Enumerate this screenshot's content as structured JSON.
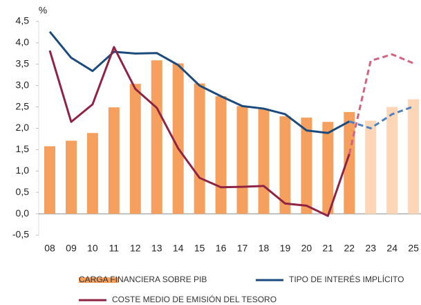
{
  "chart_data": {
    "type": "bar_line",
    "y_label": "%",
    "categories": [
      "08",
      "09",
      "10",
      "11",
      "12",
      "13",
      "14",
      "15",
      "16",
      "17",
      "18",
      "19",
      "20",
      "21",
      "22",
      "23",
      "24",
      "25"
    ],
    "ylim": [
      -0.5,
      4.5
    ],
    "yticks": [
      {
        "value": -0.5,
        "label": "-0,5"
      },
      {
        "value": 0,
        "label": "0,0"
      },
      {
        "value": 0.5,
        "label": "0,5"
      },
      {
        "value": 1,
        "label": "1,0"
      },
      {
        "value": 1.5,
        "label": "1,5"
      },
      {
        "value": 2,
        "label": "2,0"
      },
      {
        "value": 2.5,
        "label": "2,5"
      },
      {
        "value": 3,
        "label": "3,0"
      },
      {
        "value": 3.5,
        "label": "3,5"
      },
      {
        "value": 4,
        "label": "4,0"
      },
      {
        "value": 4.5,
        "label": "4,5"
      }
    ],
    "zero_line": true,
    "series": [
      {
        "name": "CARGA FINANCIERA SOBRE PIB",
        "kind": "bar",
        "color": "#f5a05f",
        "colors": [
          "#f5a05f",
          "#f5a05f",
          "#f5a05f",
          "#f5a05f",
          "#f5a05f",
          "#f5a05f",
          "#f5a05f",
          "#f5a05f",
          "#f5a05f",
          "#f5a05f",
          "#f5a05f",
          "#f5a05f",
          "#f5a05f",
          "#f5a05f",
          "#f5a05f",
          "#fcd6b7",
          "#fcd6b7",
          "#fcd6b7"
        ],
        "values": [
          1.58,
          1.71,
          1.89,
          2.49,
          3.04,
          3.59,
          3.52,
          3.05,
          2.75,
          2.52,
          2.45,
          2.28,
          2.25,
          2.15,
          2.38,
          2.18,
          2.5,
          2.68
        ]
      },
      {
        "name": "TIPO DE INTERÉS IMPLÍCITO",
        "kind": "line",
        "color": "#1b4a7c",
        "colors": [
          "#1b4a7c",
          "#1b4a7c",
          "#1b4a7c",
          "#1b4a7c",
          "#1b4a7c",
          "#1b4a7c",
          "#1b4a7c",
          "#1b4a7c",
          "#1b4a7c",
          "#1b4a7c",
          "#1b4a7c",
          "#1b4a7c",
          "#1b4a7c",
          "#1b4a7c",
          "#1b4a7c",
          "#4d80c0",
          "#4d80c0",
          "#4d80c0"
        ],
        "line_styles": [
          "solid",
          "solid",
          "solid",
          "solid",
          "solid",
          "solid",
          "solid",
          "solid",
          "solid",
          "solid",
          "solid",
          "solid",
          "solid",
          "solid",
          "solid",
          "dashed",
          "dashed",
          "dashed"
        ],
        "values": [
          4.26,
          3.65,
          3.34,
          3.79,
          3.75,
          3.76,
          3.48,
          3.0,
          2.75,
          2.52,
          2.46,
          2.33,
          1.95,
          1.89,
          2.16,
          2.0,
          2.33,
          2.51
        ]
      },
      {
        "name": "COSTE MEDIO DE EMISIÓN DEL TESORO",
        "kind": "line",
        "color": "#8e2343",
        "colors": [
          "#8e2343",
          "#8e2343",
          "#8e2343",
          "#8e2343",
          "#8e2343",
          "#8e2343",
          "#8e2343",
          "#8e2343",
          "#8e2343",
          "#8e2343",
          "#8e2343",
          "#8e2343",
          "#8e2343",
          "#8e2343",
          "#8e2343",
          "#d0647e",
          "#d0647e",
          "#d0647e"
        ],
        "line_styles": [
          "solid",
          "solid",
          "solid",
          "solid",
          "solid",
          "solid",
          "solid",
          "solid",
          "solid",
          "solid",
          "solid",
          "solid",
          "solid",
          "solid",
          "solid",
          "dashed",
          "dashed",
          "dashed"
        ],
        "values": [
          3.82,
          2.15,
          2.56,
          3.9,
          2.92,
          2.48,
          1.53,
          0.84,
          0.62,
          0.63,
          0.65,
          0.24,
          0.19,
          -0.05,
          1.4,
          3.58,
          3.73,
          3.52
        ]
      }
    ]
  }
}
